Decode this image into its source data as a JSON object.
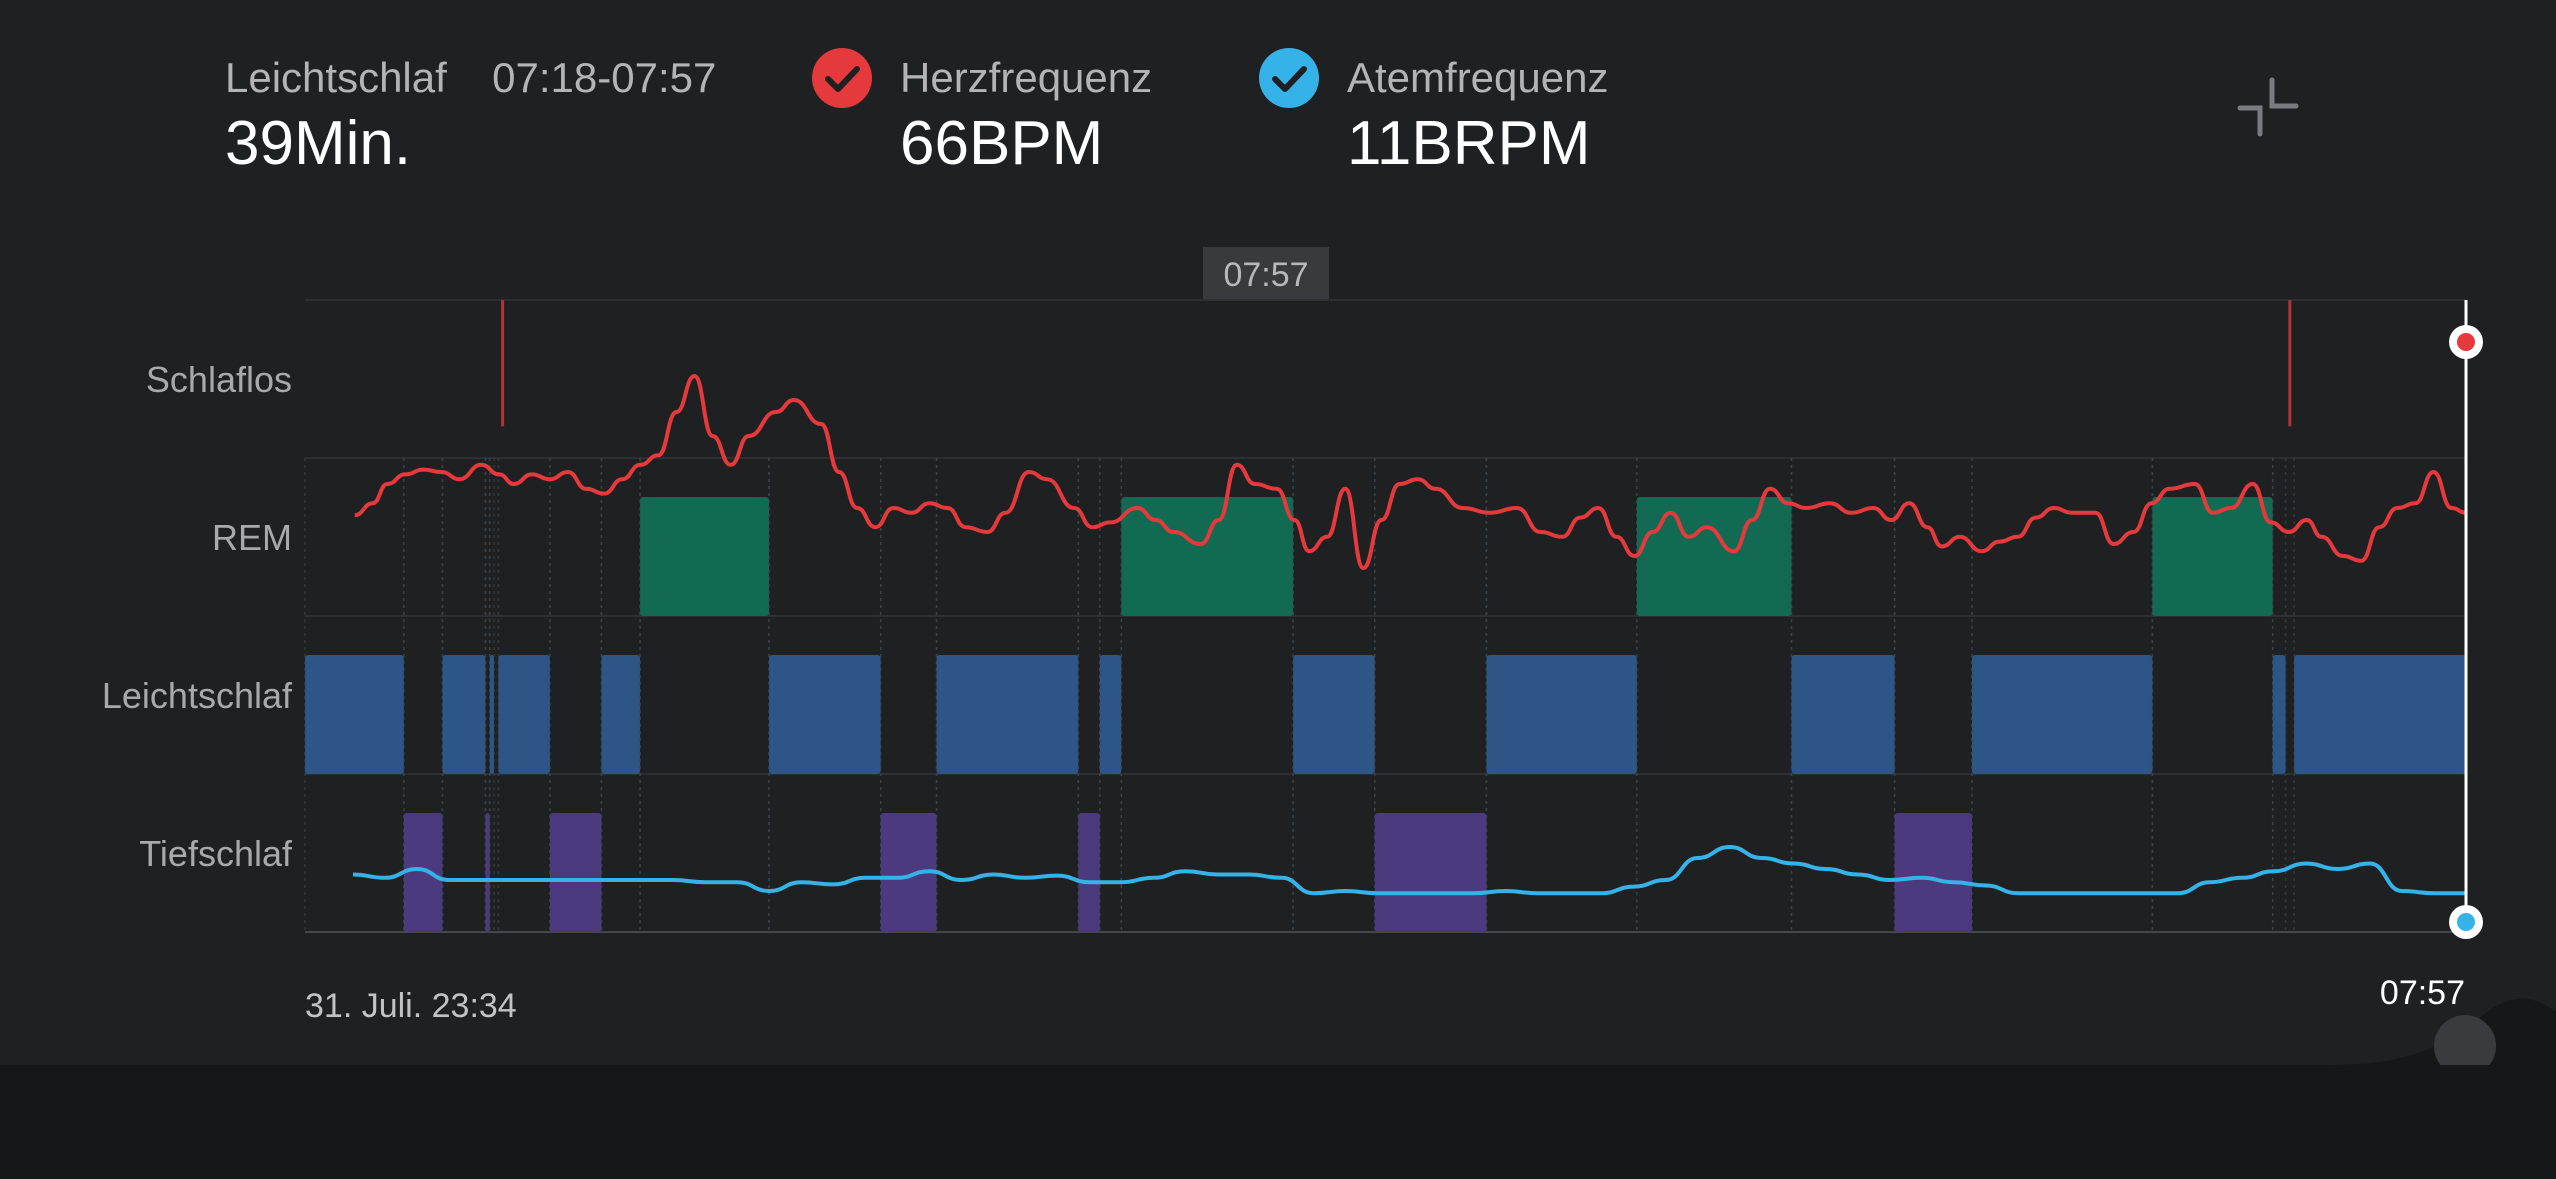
{
  "header": {
    "stage": {
      "label": "Leichtschlaf",
      "time_range": "07:18-07:57",
      "value": "39Min."
    },
    "heart_rate": {
      "label": "Herzfrequenz",
      "value": "66BPM",
      "color": "#e5393c"
    },
    "breath_rate": {
      "label": "Atemfrequenz",
      "value": "11BRPM",
      "color": "#35b2e8"
    },
    "collapse_icon": "collapse-icon"
  },
  "chart_data": {
    "type": "sleep-hypnogram-with-lines",
    "title": "",
    "cursor_label": "07:57",
    "y_categories": [
      "Schlaflos",
      "REM",
      "Leichtschlaf",
      "Tiefschlaf"
    ],
    "x_start_label": "31. Juli. 23:34",
    "x_end_label": "07:57",
    "x_range": [
      "23:34",
      "07:57"
    ],
    "stage_colors": {
      "REM": "#136a52",
      "Leichtschlaf": "#2d5687",
      "Tiefschlaf": "#4b3a7d"
    },
    "segments": [
      {
        "stage": "Leichtschlaf",
        "start": "23:34",
        "end": "23:57"
      },
      {
        "stage": "Tiefschlaf",
        "start": "23:57",
        "end": "00:06"
      },
      {
        "stage": "Leichtschlaf",
        "start": "00:06",
        "end": "00:16"
      },
      {
        "stage": "Tiefschlaf",
        "start": "00:16",
        "end": "00:17"
      },
      {
        "stage": "Leichtschlaf",
        "start": "00:17",
        "end": "00:18"
      },
      {
        "stage": "Leichtschlaf",
        "start": "00:19",
        "end": "00:31"
      },
      {
        "stage": "Tiefschlaf",
        "start": "00:31",
        "end": "00:43"
      },
      {
        "stage": "Leichtschlaf",
        "start": "00:43",
        "end": "00:52"
      },
      {
        "stage": "REM",
        "start": "00:52",
        "end": "01:22"
      },
      {
        "stage": "Leichtschlaf",
        "start": "01:22",
        "end": "01:48"
      },
      {
        "stage": "Tiefschlaf",
        "start": "01:48",
        "end": "02:01"
      },
      {
        "stage": "Leichtschlaf",
        "start": "02:01",
        "end": "02:34"
      },
      {
        "stage": "Tiefschlaf",
        "start": "02:34",
        "end": "02:39"
      },
      {
        "stage": "Leichtschlaf",
        "start": "02:39",
        "end": "02:44"
      },
      {
        "stage": "REM",
        "start": "02:44",
        "end": "03:24"
      },
      {
        "stage": "Leichtschlaf",
        "start": "03:24",
        "end": "03:43"
      },
      {
        "stage": "Tiefschlaf",
        "start": "03:43",
        "end": "04:09"
      },
      {
        "stage": "Leichtschlaf",
        "start": "04:09",
        "end": "04:44"
      },
      {
        "stage": "REM",
        "start": "04:44",
        "end": "05:20"
      },
      {
        "stage": "Leichtschlaf",
        "start": "05:20",
        "end": "05:44"
      },
      {
        "stage": "Tiefschlaf",
        "start": "05:44",
        "end": "06:02"
      },
      {
        "stage": "Leichtschlaf",
        "start": "06:02",
        "end": "06:44"
      },
      {
        "stage": "REM",
        "start": "06:44",
        "end": "07:12"
      },
      {
        "stage": "Leichtschlaf",
        "start": "07:12",
        "end": "07:15"
      },
      {
        "stage": "Leichtschlaf",
        "start": "07:17",
        "end": "07:57"
      }
    ],
    "awake_markers": [
      "00:20",
      "07:16"
    ],
    "heart_rate_series": {
      "name": "Herzfrequenz",
      "color": "#e5393c",
      "points": [
        [
          0.012,
          0.73
        ],
        [
          0.022,
          0.68
        ],
        [
          0.03,
          0.6
        ],
        [
          0.04,
          0.56
        ],
        [
          0.05,
          0.54
        ],
        [
          0.06,
          0.55
        ],
        [
          0.07,
          0.58
        ],
        [
          0.082,
          0.52
        ],
        [
          0.092,
          0.56
        ],
        [
          0.1,
          0.6
        ],
        [
          0.11,
          0.56
        ],
        [
          0.12,
          0.58
        ],
        [
          0.13,
          0.55
        ],
        [
          0.14,
          0.62
        ],
        [
          0.15,
          0.64
        ],
        [
          0.16,
          0.58
        ],
        [
          0.17,
          0.52
        ],
        [
          0.18,
          0.48
        ],
        [
          0.19,
          0.3
        ],
        [
          0.2,
          0.15
        ],
        [
          0.21,
          0.4
        ],
        [
          0.22,
          0.52
        ],
        [
          0.23,
          0.4
        ],
        [
          0.245,
          0.3
        ],
        [
          0.255,
          0.25
        ],
        [
          0.27,
          0.35
        ],
        [
          0.28,
          0.55
        ],
        [
          0.29,
          0.7
        ],
        [
          0.3,
          0.78
        ],
        [
          0.31,
          0.7
        ],
        [
          0.32,
          0.72
        ],
        [
          0.33,
          0.68
        ],
        [
          0.34,
          0.7
        ],
        [
          0.35,
          0.78
        ],
        [
          0.362,
          0.8
        ],
        [
          0.372,
          0.72
        ],
        [
          0.385,
          0.55
        ],
        [
          0.395,
          0.58
        ],
        [
          0.41,
          0.7
        ],
        [
          0.42,
          0.78
        ],
        [
          0.43,
          0.76
        ],
        [
          0.445,
          0.7
        ],
        [
          0.455,
          0.75
        ],
        [
          0.465,
          0.8
        ],
        [
          0.48,
          0.85
        ],
        [
          0.49,
          0.75
        ],
        [
          0.5,
          0.52
        ],
        [
          0.51,
          0.6
        ],
        [
          0.522,
          0.62
        ],
        [
          0.532,
          0.75
        ],
        [
          0.54,
          0.88
        ],
        [
          0.55,
          0.82
        ],
        [
          0.56,
          0.62
        ],
        [
          0.57,
          0.95
        ],
        [
          0.58,
          0.75
        ],
        [
          0.59,
          0.6
        ],
        [
          0.6,
          0.58
        ],
        [
          0.61,
          0.62
        ],
        [
          0.625,
          0.7
        ],
        [
          0.64,
          0.72
        ],
        [
          0.655,
          0.7
        ],
        [
          0.668,
          0.8
        ],
        [
          0.68,
          0.82
        ],
        [
          0.69,
          0.74
        ],
        [
          0.7,
          0.7
        ],
        [
          0.71,
          0.82
        ],
        [
          0.72,
          0.9
        ],
        [
          0.73,
          0.8
        ],
        [
          0.74,
          0.72
        ],
        [
          0.75,
          0.82
        ],
        [
          0.76,
          0.78
        ],
        [
          0.775,
          0.88
        ],
        [
          0.785,
          0.75
        ],
        [
          0.795,
          0.62
        ],
        [
          0.805,
          0.68
        ],
        [
          0.815,
          0.7
        ],
        [
          0.828,
          0.68
        ],
        [
          0.84,
          0.72
        ],
        [
          0.852,
          0.7
        ],
        [
          0.862,
          0.75
        ],
        [
          0.872,
          0.68
        ],
        [
          0.882,
          0.78
        ],
        [
          0.89,
          0.86
        ],
        [
          0.9,
          0.82
        ],
        [
          0.912,
          0.88
        ],
        [
          0.922,
          0.84
        ],
        [
          0.932,
          0.82
        ],
        [
          0.942,
          0.74
        ],
        [
          0.952,
          0.7
        ],
        [
          0.962,
          0.72
        ],
        [
          0.975,
          0.72
        ],
        [
          0.985,
          0.85
        ],
        [
          0.996,
          0.8
        ],
        [
          1.006,
          0.68
        ],
        [
          1.016,
          0.62
        ],
        [
          1.03,
          0.6
        ],
        [
          1.04,
          0.72
        ],
        [
          1.05,
          0.7
        ],
        [
          1.062,
          0.6
        ],
        [
          1.072,
          0.76
        ],
        [
          1.082,
          0.8
        ],
        [
          1.092,
          0.75
        ],
        [
          1.1,
          0.82
        ],
        [
          1.112,
          0.9
        ],
        [
          1.122,
          0.92
        ],
        [
          1.132,
          0.78
        ],
        [
          1.142,
          0.7
        ],
        [
          1.152,
          0.68
        ],
        [
          1.162,
          0.55
        ],
        [
          1.172,
          0.7
        ],
        [
          1.18,
          0.72
        ]
      ]
    },
    "breath_rate_series": {
      "name": "Atemfrequenz",
      "color": "#35b2e8"
    }
  }
}
